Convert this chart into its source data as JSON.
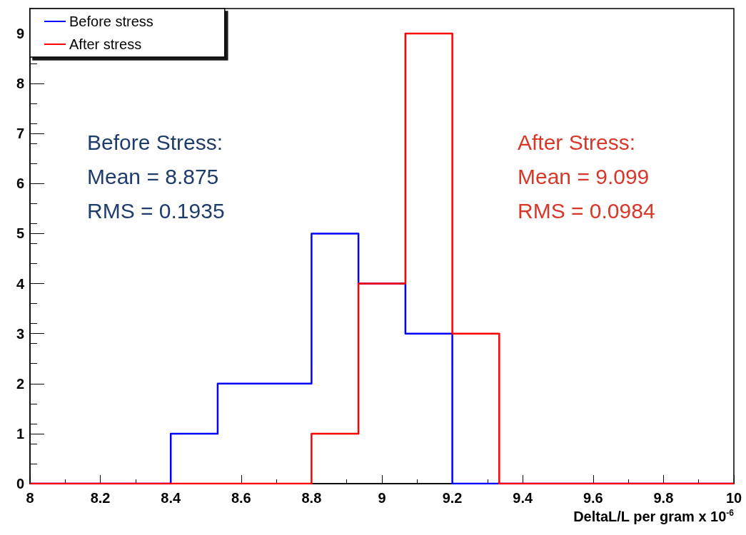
{
  "chart_data": {
    "type": "histogram",
    "xlabel": "DeltaL/L per gram x 10$^{-6}$",
    "bins": [
      8,
      8.1333,
      8.2667,
      8.4,
      8.5333,
      8.6667,
      8.8,
      8.9333,
      9.0667,
      9.2,
      9.3333,
      9.4667,
      9.6,
      9.7333,
      9.8667,
      10
    ],
    "series": [
      {
        "name": "Before stress",
        "color": "#0000ff",
        "values": [
          0,
          0,
          0,
          1,
          2,
          2,
          5,
          4,
          3,
          0,
          0,
          0,
          0,
          0,
          0
        ]
      },
      {
        "name": "After stress",
        "color": "#ff0000",
        "values": [
          0,
          0,
          0,
          0,
          0,
          0,
          1,
          4,
          9,
          3,
          0,
          0,
          0,
          0,
          0
        ]
      }
    ],
    "xlim": [
      8,
      10
    ],
    "xticks": [
      8,
      8.2,
      8.4,
      8.6,
      8.8,
      9,
      9.2,
      9.4,
      9.6,
      9.8,
      10
    ],
    "ylim": [
      0,
      9.5
    ],
    "yticks": [
      0,
      1,
      2,
      3,
      4,
      5,
      6,
      7,
      8,
      9
    ],
    "annotations": [
      "Before Stress:\nMean = 8.875\nRMS = 0.1935",
      "After Stress:\nMean = 9.099\nRMS = 0.0984"
    ],
    "legend": "top left",
    "grid": false
  }
}
